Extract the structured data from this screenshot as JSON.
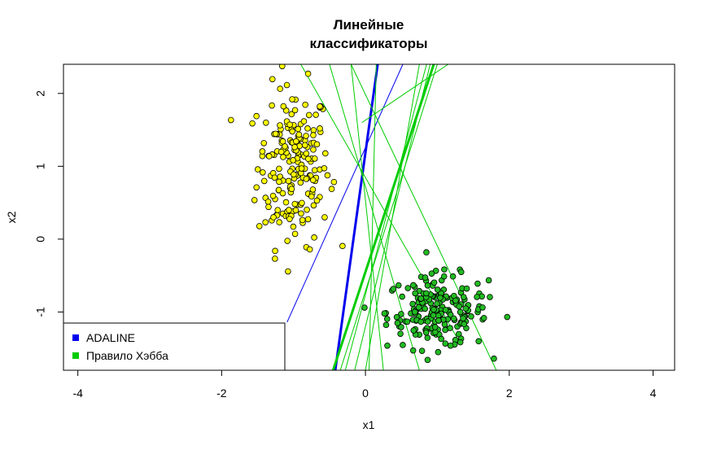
{
  "chart_data": {
    "type": "scatter",
    "title_lines": [
      "Линейные",
      "классификаторы"
    ],
    "xlabel": "x1",
    "ylabel": "x2",
    "xlim": [
      -4.2,
      4.3
    ],
    "ylim": [
      -1.8,
      2.4
    ],
    "x_ticks": [
      -4,
      -2,
      0,
      2,
      4
    ],
    "y_ticks": [
      -1,
      0,
      1,
      2
    ],
    "colors": {
      "class1_fill": "#ffff00",
      "class2_fill": "#22bb22",
      "adaline": "#0000ee",
      "hebb": "#00cc00"
    },
    "legend": {
      "position": "bottom-left",
      "entries": [
        {
          "label": "ADALINE",
          "color": "#0000ee"
        },
        {
          "label": "Правило Хэбба",
          "color": "#00cc00"
        }
      ]
    },
    "class1_center": [
      -1.0,
      1.0
    ],
    "class1_spread": [
      0.25,
      0.55
    ],
    "class1_count": 200,
    "class2_center": [
      1.0,
      -1.0
    ],
    "class2_spread": [
      0.35,
      0.25
    ],
    "class2_count": 200,
    "lines": [
      {
        "series": "adaline",
        "width": 3,
        "points": [
          [
            -0.42,
            -1.8
          ],
          [
            0.17,
            2.4
          ]
        ]
      },
      {
        "series": "adaline",
        "width": 1,
        "points": [
          [
            -1.09,
            -1.14
          ],
          [
            0.52,
            2.4
          ]
        ]
      },
      {
        "series": "hebb",
        "width": 3,
        "points": [
          [
            -0.45,
            -1.8
          ],
          [
            0.95,
            2.4
          ]
        ]
      },
      {
        "series": "hebb",
        "width": 1,
        "points": [
          [
            -0.2,
            2.4
          ],
          [
            1.82,
            -1.8
          ]
        ]
      },
      {
        "series": "hebb",
        "width": 1,
        "points": [
          [
            -0.9,
            2.4
          ],
          [
            1.3,
            -1.4
          ]
        ]
      },
      {
        "series": "hebb",
        "width": 1,
        "points": [
          [
            -0.5,
            2.4
          ],
          [
            0.75,
            -1.8
          ]
        ]
      },
      {
        "series": "hebb",
        "width": 1,
        "points": [
          [
            -0.2,
            2.4
          ],
          [
            0.25,
            -1.8
          ]
        ]
      },
      {
        "series": "hebb",
        "width": 1,
        "points": [
          [
            0.15,
            2.4
          ],
          [
            0.05,
            -1.8
          ]
        ]
      },
      {
        "series": "hebb",
        "width": 1,
        "points": [
          [
            -0.05,
            1.6
          ],
          [
            1.15,
            2.4
          ]
        ]
      },
      {
        "series": "hebb",
        "width": 1,
        "points": [
          [
            0.0,
            -1.8
          ],
          [
            0.75,
            2.4
          ]
        ]
      },
      {
        "series": "hebb",
        "width": 1,
        "points": [
          [
            -0.15,
            -1.8
          ],
          [
            0.9,
            2.4
          ]
        ]
      },
      {
        "series": "hebb",
        "width": 1,
        "points": [
          [
            -0.28,
            -1.8
          ],
          [
            0.85,
            2.4
          ]
        ]
      },
      {
        "series": "hebb",
        "width": 1,
        "points": [
          [
            -0.35,
            -1.8
          ],
          [
            1.0,
            2.4
          ]
        ]
      }
    ]
  }
}
